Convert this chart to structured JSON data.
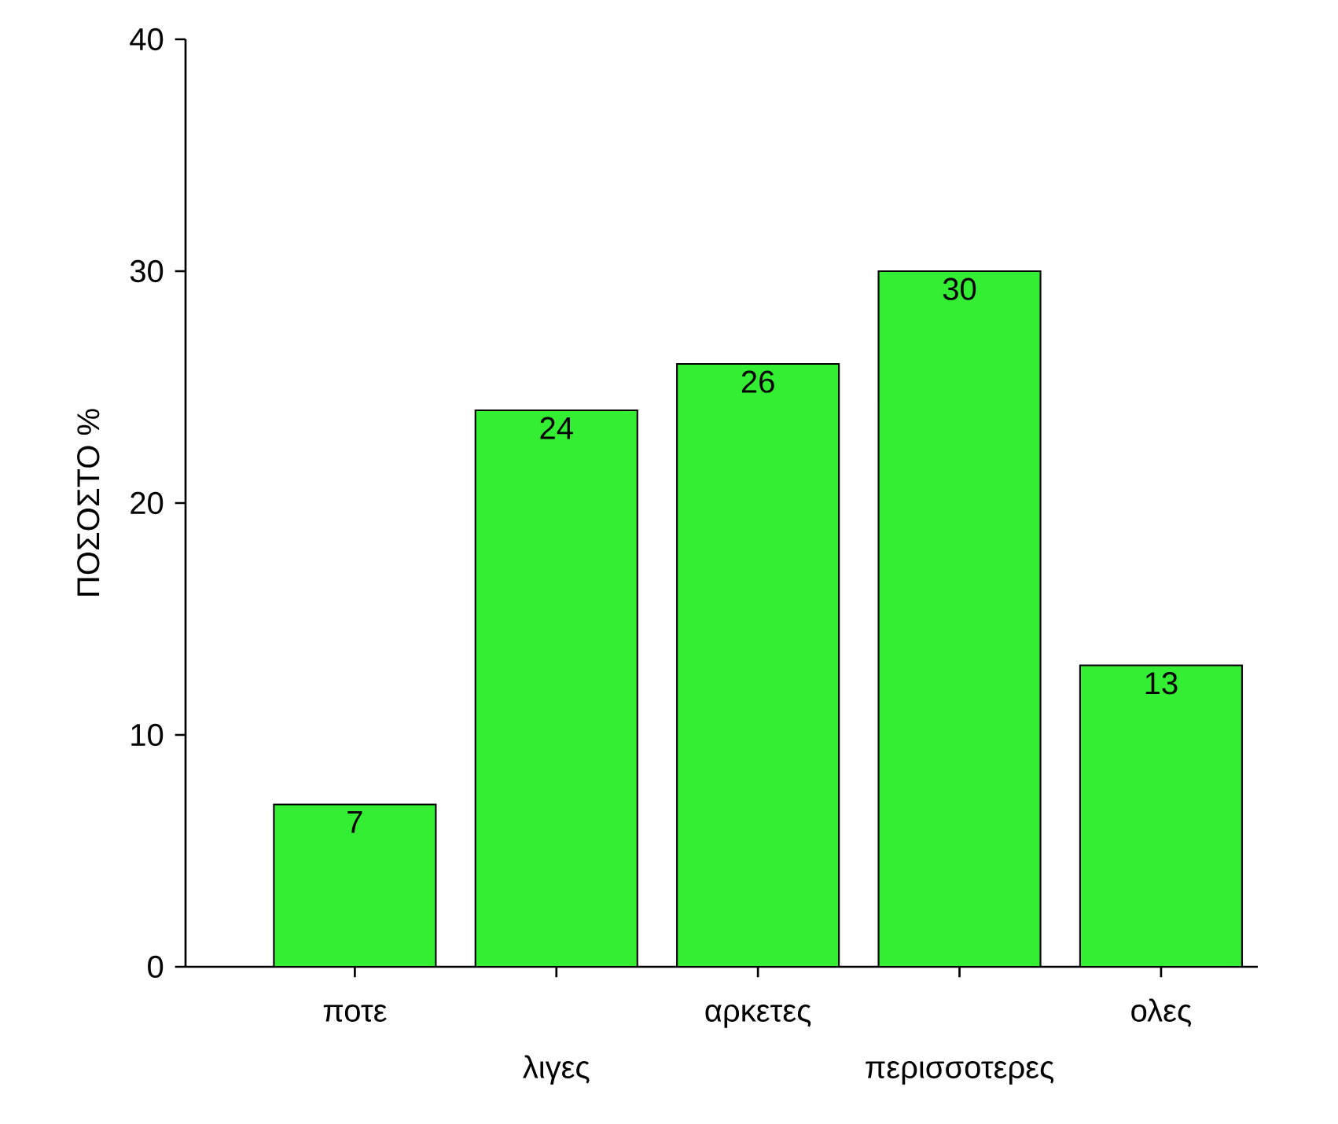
{
  "chart_data": {
    "type": "bar",
    "ylabel": "ΠΟΣΟΣΤΟ %",
    "categories": [
      "ποτε",
      "λιγες",
      "αρκετες",
      "περισσοτερες",
      "ολες"
    ],
    "values": [
      7,
      24,
      26,
      30,
      13
    ],
    "color": "#33ee33",
    "ylim": [
      0,
      40
    ],
    "yticks": [
      0,
      10,
      20,
      30,
      40
    ],
    "data_labels": true
  }
}
